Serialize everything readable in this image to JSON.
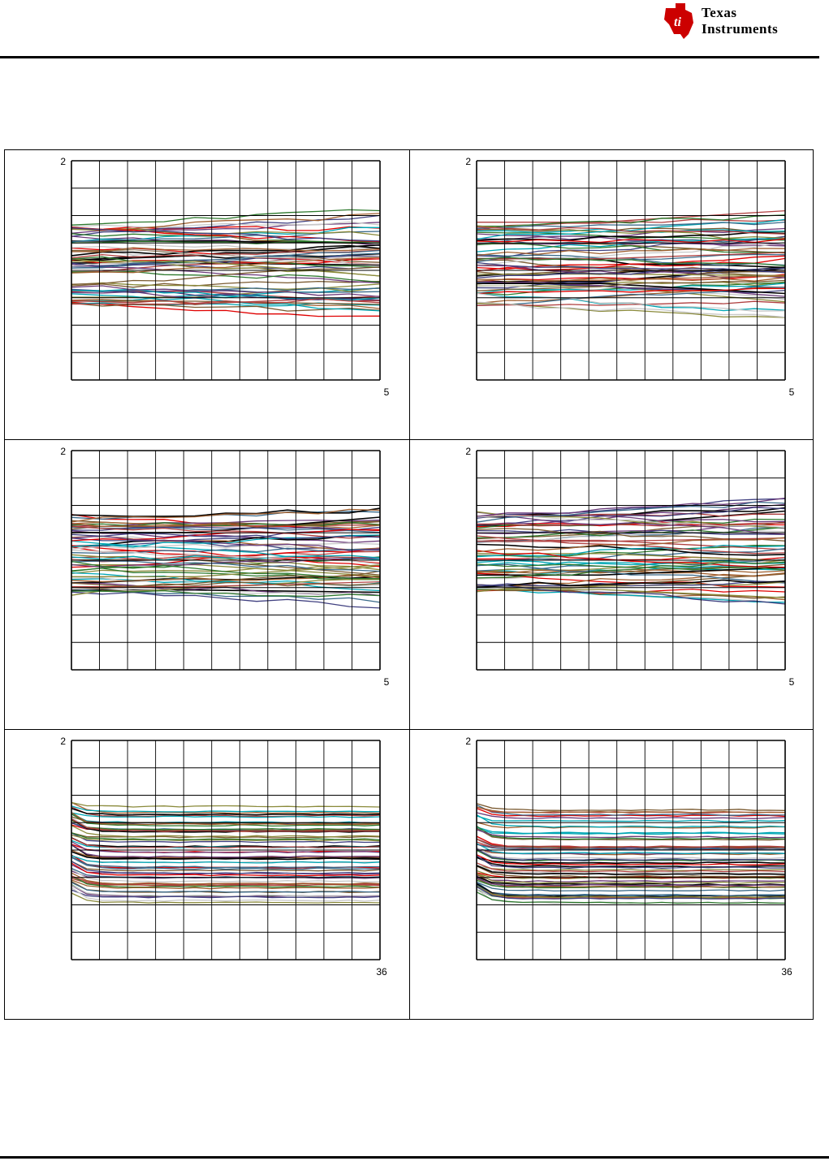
{
  "header": {
    "logo_line1": "Texas",
    "logo_line2": "Instruments",
    "brand_color": "#cc0000"
  },
  "chart_data": [
    {
      "type": "line",
      "title": "",
      "xlabel": "",
      "ylabel": "",
      "ytop_label": "2",
      "xright_label": "5",
      "grid": true,
      "series_count": 60
    },
    {
      "type": "line",
      "title": "",
      "xlabel": "",
      "ylabel": "",
      "ytop_label": "2",
      "xright_label": "5",
      "grid": true,
      "series_count": 60
    },
    {
      "type": "line",
      "title": "",
      "xlabel": "",
      "ylabel": "",
      "ytop_label": "2",
      "xright_label": "5",
      "grid": true,
      "series_count": 60
    },
    {
      "type": "line",
      "title": "",
      "xlabel": "",
      "ylabel": "",
      "ytop_label": "2",
      "xright_label": "5",
      "grid": true,
      "series_count": 60
    },
    {
      "type": "line",
      "title": "",
      "xlabel": "",
      "ylabel": "",
      "ytop_label": "2",
      "xright_label": "36",
      "grid": true,
      "series_count": 60
    },
    {
      "type": "line",
      "title": "",
      "xlabel": "",
      "ylabel": "",
      "ytop_label": "2",
      "xright_label": "36",
      "grid": true,
      "series_count": 60
    }
  ]
}
